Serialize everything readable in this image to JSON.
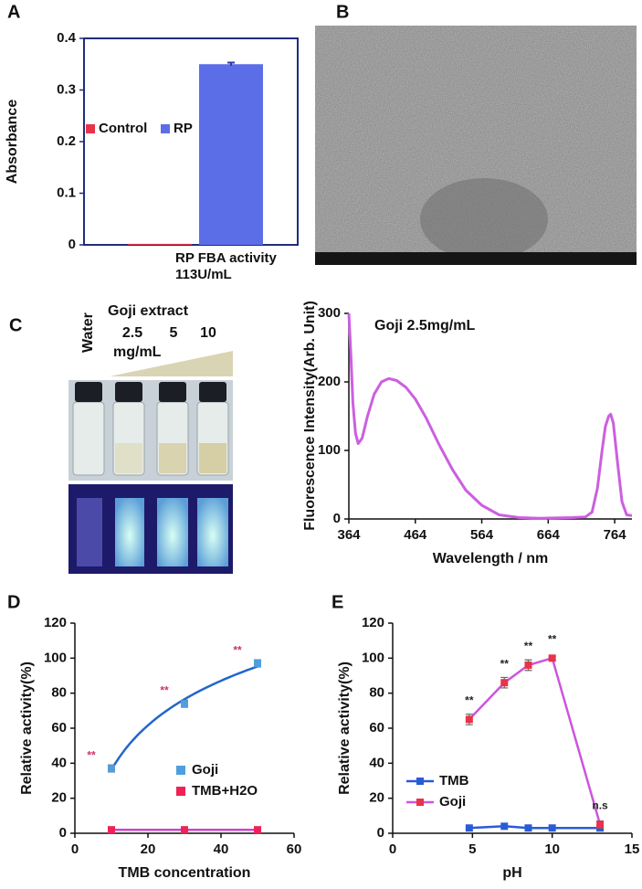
{
  "panel_labels": [
    "A",
    "B",
    "C",
    "D",
    "E"
  ],
  "photo": {
    "title": "Goji extract",
    "concentrations": [
      "2.5",
      "5",
      "10"
    ],
    "unit": "mg/mL",
    "control": "Water"
  },
  "chart_data": [
    {
      "type": "bar",
      "ylabel": "Absorbance",
      "categories": [
        "RP FBA activity"
      ],
      "category_note": "113U/mL",
      "series": [
        {
          "name": "Control",
          "color": "#e8334a",
          "values": [
            0.002
          ]
        },
        {
          "name": "RP",
          "color": "#5b6ee8",
          "values": [
            0.35
          ],
          "errors": [
            0.003
          ]
        }
      ],
      "ylim": [
        0,
        0.4
      ],
      "yticks": [
        0,
        0.1,
        0.2,
        0.3,
        0.4
      ],
      "legend": "upper left"
    },
    {
      "type": "line",
      "annotation": "Goji 2.5mg/mL",
      "xlabel": "Wavelength / nm",
      "ylabel": "Fluorescence Intensity(Arb. Unit)",
      "color": "#cc5fe0",
      "x": [
        364,
        367,
        370,
        374,
        378,
        384,
        392,
        402,
        413,
        424,
        436,
        450,
        464,
        480,
        500,
        520,
        540,
        564,
        590,
        620,
        650,
        700,
        720,
        730,
        738,
        745,
        750,
        755,
        758,
        762,
        768,
        775,
        782,
        790
      ],
      "values": [
        300,
        240,
        170,
        125,
        110,
        118,
        150,
        182,
        200,
        205,
        202,
        192,
        175,
        148,
        108,
        72,
        42,
        20,
        6,
        2,
        1,
        2,
        3,
        10,
        45,
        100,
        135,
        150,
        153,
        140,
        85,
        25,
        6,
        5
      ],
      "xlim": [
        364,
        790
      ],
      "xticks": [
        364,
        464,
        564,
        664,
        764
      ],
      "ylim": [
        0,
        300
      ],
      "yticks": [
        0,
        100,
        200,
        300
      ]
    },
    {
      "type": "scatter",
      "xlabel": "TMB concentration",
      "ylabel": "Relative activity(%)",
      "series": [
        {
          "name": "Goji",
          "color": "#4f9fe0",
          "fit_color": "#2266cc",
          "x": [
            10,
            30,
            50
          ],
          "values": [
            37,
            74,
            97
          ],
          "errors": [
            2,
            2,
            2
          ],
          "point_labels": [
            "**",
            "**",
            "**"
          ],
          "label_color": "#cc3366"
        },
        {
          "name": "TMB+H2O",
          "color": "#ee2255",
          "line_color": "#cc44cc",
          "x": [
            10,
            30,
            50
          ],
          "values": [
            2,
            2,
            2
          ]
        }
      ],
      "xlim": [
        0,
        60
      ],
      "xticks": [
        0,
        20,
        40,
        60
      ],
      "ylim": [
        0,
        120
      ],
      "yticks": [
        0,
        20,
        40,
        60,
        80,
        100,
        120
      ]
    },
    {
      "type": "line",
      "xlabel": "pH",
      "ylabel": "Relative activity(%)",
      "series": [
        {
          "name": "TMB",
          "color": "#2a5bd7",
          "marker_color": "#2a5bd7",
          "x": [
            4.8,
            7,
            8.5,
            10,
            13
          ],
          "values": [
            3,
            4,
            3,
            3,
            3
          ]
        },
        {
          "name": "Goji",
          "color": "#cc55dd",
          "marker_color": "#e8334a",
          "x": [
            4.8,
            7,
            8.5,
            10,
            13
          ],
          "values": [
            65,
            86,
            96,
            100,
            5
          ],
          "errors": [
            3,
            3,
            3,
            1,
            2
          ],
          "point_labels": [
            "**",
            "**",
            "**",
            "**",
            "n.s"
          ],
          "label_color": "#222"
        }
      ],
      "xlim": [
        0,
        15
      ],
      "xticks": [
        0,
        5,
        10,
        15
      ],
      "ylim": [
        0,
        120
      ],
      "yticks": [
        0,
        20,
        40,
        60,
        80,
        100,
        120
      ],
      "legend": "lower left"
    }
  ]
}
